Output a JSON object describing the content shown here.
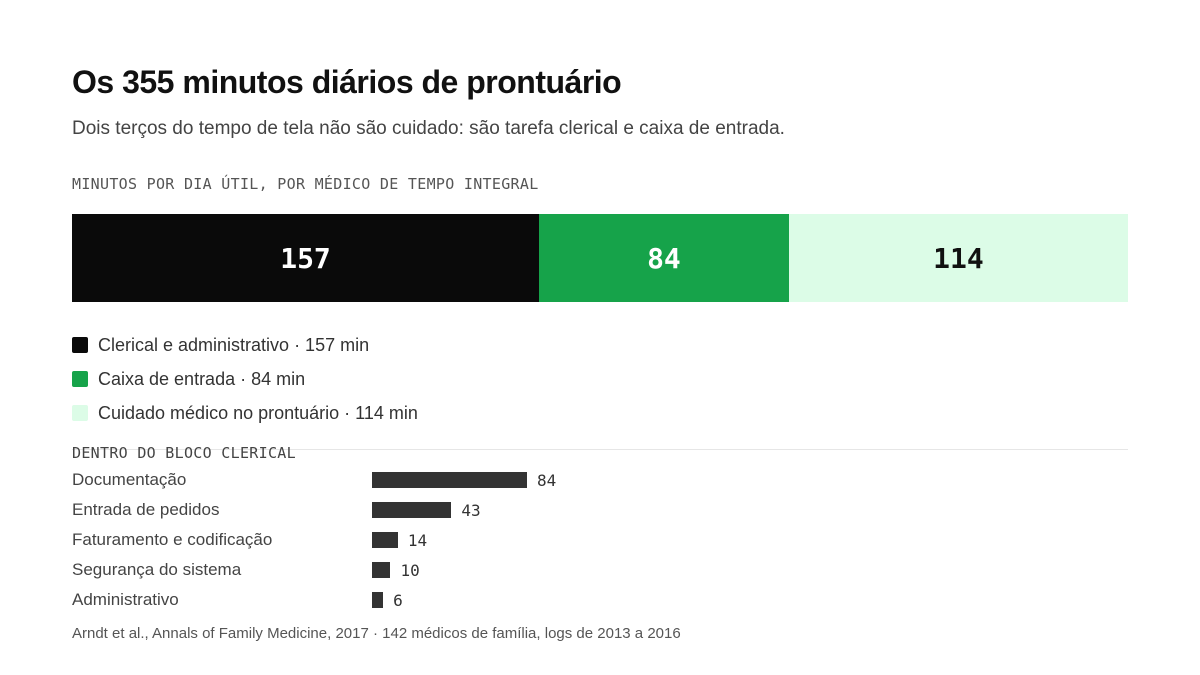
{
  "title": "Os 355 minutos diários de prontuário",
  "subtitle": "Dois terços do tempo de tela não são cuidado: são tarefa clerical e caixa de entrada.",
  "source": "Arndt et al., Annals of Family Medicine, 2017 · 142 médicos de família, logs de 2013 a 2016",
  "chart_data": [
    {
      "type": "bar",
      "orientation": "horizontal-stacked",
      "title": "MINUTOS POR DIA ÚTIL, POR MÉDICO DE TEMPO INTEGRAL",
      "total": 355,
      "series": [
        {
          "label": "Clerical e administrativo · 157 min",
          "value": 157,
          "color": "#0a0a0a",
          "text_color": "#ffffff"
        },
        {
          "label": "Caixa de entrada · 84 min",
          "value": 84,
          "color": "#16a34a",
          "text_color": "#ffffff"
        },
        {
          "label": "Cuidado médico no prontuário · 114 min",
          "value": 114,
          "color": "#dcfce7",
          "text_color": "#111111"
        }
      ],
      "legend_placement": "bottom-left"
    },
    {
      "type": "bar",
      "orientation": "horizontal",
      "title": "DENTRO DO BLOCO CLERICAL",
      "categories": [
        "Documentação",
        "Entrada de pedidos",
        "Faturamento e codificação",
        "Segurança do sistema",
        "Administrativo"
      ],
      "values": [
        84,
        43,
        14,
        10,
        6
      ],
      "color": "#333333",
      "grid": false
    }
  ]
}
